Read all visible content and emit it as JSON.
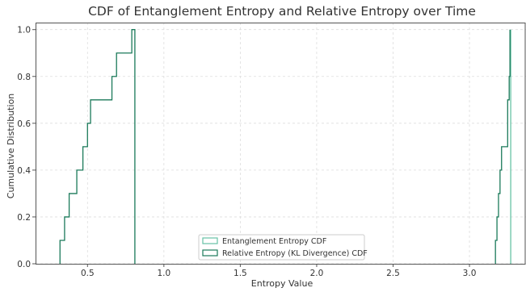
{
  "chart_data": {
    "type": "line",
    "title": "CDF of Entanglement Entropy and Relative Entropy over Time",
    "xlabel": "Entropy Value",
    "ylabel": "Cumulative Distribution",
    "xlim": [
      0.16,
      3.37
    ],
    "ylim": [
      0.0,
      1.03
    ],
    "xticks": [
      0.5,
      1.0,
      1.5,
      2.0,
      2.5,
      3.0
    ],
    "xtick_labels": [
      "0.5",
      "1.0",
      "1.5",
      "2.0",
      "2.5",
      "3.0"
    ],
    "yticks": [
      0.0,
      0.2,
      0.4,
      0.6,
      0.8,
      1.0
    ],
    "ytick_labels": [
      "0.0",
      "0.2",
      "0.4",
      "0.6",
      "0.8",
      "1.0"
    ],
    "grid": true,
    "legend_position": "lower-center",
    "series": [
      {
        "name": "Entanglement Entropy CDF",
        "color": "#66c2a5",
        "step_x": [
          3.265,
          3.27
        ],
        "step_y": [
          0.0,
          1.0
        ]
      },
      {
        "name": "Relative Entropy (KL Divergence) CDF",
        "color": "#1b7a5a",
        "step_x": [
          0.32,
          0.35,
          0.38,
          0.43,
          0.47,
          0.5,
          0.52,
          0.66,
          0.69,
          0.79,
          0.81
        ],
        "step_y": [
          0.1,
          0.2,
          0.3,
          0.4,
          0.5,
          0.6,
          0.7,
          0.8,
          0.9,
          1.0,
          0.0
        ],
        "step_x_b": [
          3.17,
          3.18,
          3.19,
          3.2,
          3.21,
          3.25,
          3.26,
          3.265
        ],
        "step_y_b": [
          0.1,
          0.2,
          0.3,
          0.4,
          0.5,
          0.7,
          0.8,
          1.0
        ]
      }
    ]
  }
}
